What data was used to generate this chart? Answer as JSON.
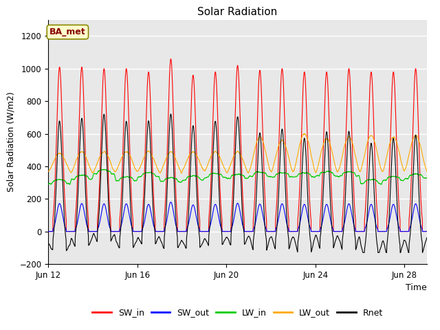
{
  "title": "Solar Radiation",
  "xlabel": "Time",
  "ylabel": "Solar Radiation (W/m2)",
  "ylim": [
    -200,
    1300
  ],
  "yticks": [
    -200,
    0,
    200,
    400,
    600,
    800,
    1000,
    1200
  ],
  "start_day": 12,
  "n_days": 18,
  "pts_per_day": 288,
  "colors": {
    "SW_in": "#ff0000",
    "SW_out": "#0000ff",
    "LW_in": "#00cc00",
    "LW_out": "#ffaa00",
    "Rnet": "#000000"
  },
  "annotation_text": "BA_met",
  "annotation_color": "#880000",
  "annotation_bg": "#ffffcc",
  "annotation_edge": "#888800",
  "plot_bg": "#e8e8e8",
  "linewidth": 0.8,
  "xtick_labels": [
    "Jun 12",
    "Jun 16",
    "Jun 20",
    "Jun 24",
    "Jun 28"
  ],
  "xtick_positions": [
    12,
    16,
    20,
    24,
    28
  ]
}
